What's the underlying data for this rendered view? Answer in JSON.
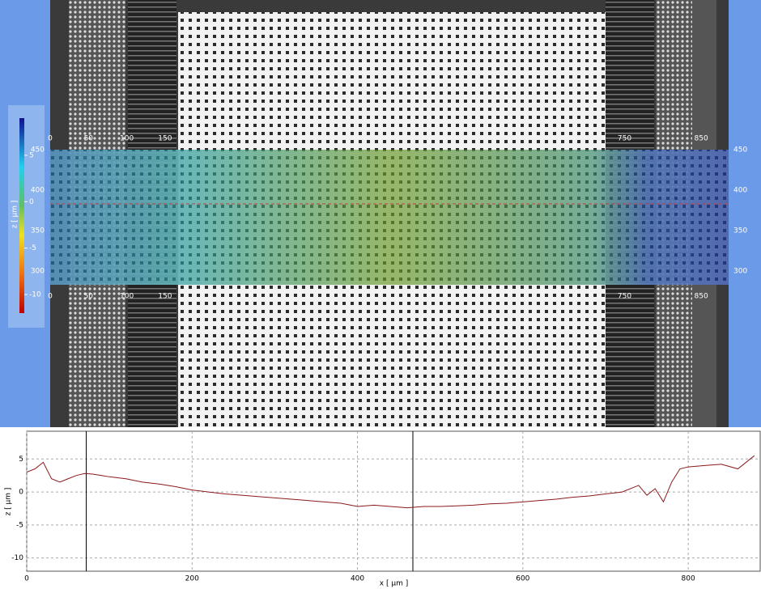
{
  "image_view": {
    "x_ruler_top": [
      0,
      50,
      100,
      150,
      750,
      850
    ],
    "x_ruler_bottom": [
      0,
      50,
      100,
      150,
      750,
      850
    ],
    "y_ruler": [
      450,
      400,
      350,
      300
    ],
    "colorbar": {
      "title": "z [ µm ]",
      "ticks": [
        5,
        0,
        -5,
        -10
      ],
      "range": [
        9,
        -12
      ]
    }
  },
  "chart_data": {
    "type": "line",
    "x_label": "x [ µm ]",
    "y_label": "z [ µm ]",
    "x": [
      0,
      10,
      20,
      30,
      40,
      50,
      60,
      70,
      80,
      90,
      100,
      120,
      140,
      160,
      180,
      200,
      220,
      240,
      260,
      280,
      300,
      320,
      340,
      360,
      380,
      400,
      420,
      440,
      460,
      480,
      500,
      520,
      540,
      560,
      580,
      600,
      620,
      640,
      660,
      680,
      700,
      720,
      740,
      750,
      760,
      770,
      780,
      790,
      800,
      820,
      840,
      860,
      880
    ],
    "series": [
      {
        "color": "#8b1a1a",
        "values": [
          3,
          3.5,
          4.5,
          2,
          1.5,
          2,
          2.5,
          2.8,
          2.7,
          2.5,
          2.3,
          2,
          1.5,
          1.2,
          0.8,
          0.3,
          0,
          -0.3,
          -0.5,
          -0.7,
          -0.9,
          -1.1,
          -1.3,
          -1.5,
          -1.7,
          -2.2,
          -2,
          -2.2,
          -2.4,
          -2.2,
          -2.2,
          -2.1,
          -2,
          -1.8,
          -1.7,
          -1.5,
          -1.3,
          -1.1,
          -0.8,
          -0.6,
          -0.3,
          0,
          1,
          -0.5,
          0.5,
          -1.5,
          1.5,
          3.5,
          3.8,
          4,
          4.2,
          3.5,
          5.5
        ]
      }
    ],
    "cursors": [
      72,
      467
    ],
    "xlim": [
      0,
      888
    ],
    "ylim": [
      -12,
      9.2
    ],
    "xticks": [
      0,
      200,
      400,
      600,
      800
    ],
    "yticks": [
      5,
      0,
      -5,
      -10
    ],
    "grid": true
  }
}
